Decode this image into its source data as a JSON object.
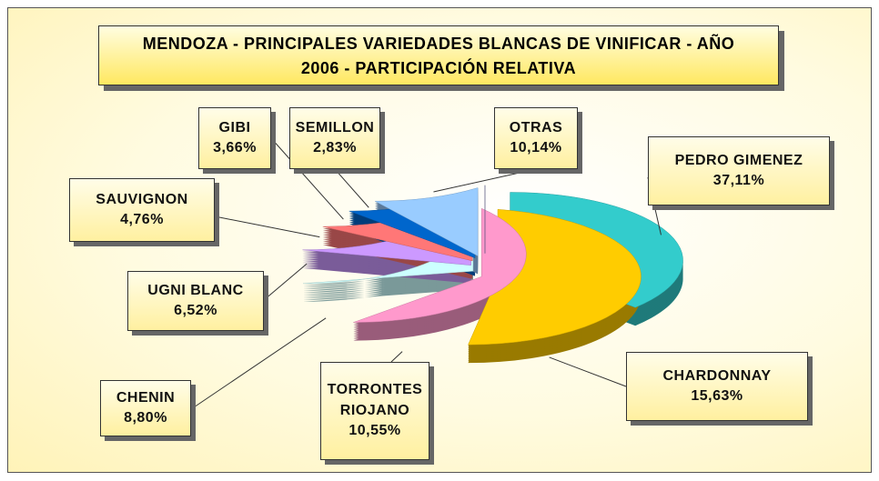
{
  "chart_data": {
    "type": "pie",
    "title": "MENDOZA - PRINCIPALES VARIEDADES BLANCAS DE VINIFICAR - AÑO 2006 - PARTICIPACIÓN RELATIVA",
    "categories": [
      "PEDRO GIMENEZ",
      "CHARDONNAY",
      "TORRONTES RIOJANO",
      "CHENIN",
      "UGNI BLANC",
      "SAUVIGNON",
      "GIBI",
      "SEMILLON",
      "OTRAS"
    ],
    "values": [
      37.11,
      15.63,
      10.55,
      8.8,
      6.52,
      4.76,
      3.66,
      2.83,
      10.14
    ],
    "value_labels": [
      "37,11%",
      "15,63%",
      "10,55%",
      "8,80%",
      "6,52%",
      "4,76%",
      "3,66%",
      "2,83%",
      "10,14%"
    ],
    "colors": [
      "#33cccc",
      "#ffcc00",
      "#ff99cc",
      "#ccffff",
      "#cc99ff",
      "#ff7777",
      "#0066cc",
      "#99ccff",
      "#666699"
    ]
  }
}
